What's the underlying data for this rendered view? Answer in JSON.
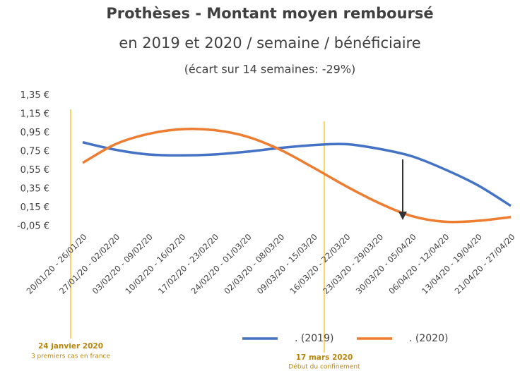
{
  "chart_data": {
    "type": "line",
    "title": "Prothèses - Montant moyen remboursé",
    "subtitle": "en 2019 et 2020 / semaine / bénéficiaire",
    "note": "(écart sur 14 semaines: -29%)",
    "categories": [
      "20/01/20 - 26/01/20",
      "27/01/20 - 02/02/20",
      "03/02/20 - 09/02/20",
      "10/02/20 - 16/02/20",
      "17/02/20 - 23/02/20",
      "24/02/20 - 01/03/20",
      "02/03/20 - 08/03/20",
      "09/03/20 - 15/03/20",
      "16/03/20 - 22/03/20",
      "23/03/20 - 29/03/20",
      "30/03/20 - 05/04/20",
      "06/04/20 - 12/04/20",
      "13/04/20 - 19/04/20",
      "21/04/20 - 27/04/20"
    ],
    "series": [
      {
        "name": ". (2019)",
        "color": "#4472c4",
        "values": [
          0.85,
          0.77,
          0.72,
          0.71,
          0.72,
          0.75,
          0.79,
          0.82,
          0.83,
          0.78,
          0.7,
          0.56,
          0.39,
          0.17
        ]
      },
      {
        "name": ". (2020)",
        "color": "#ed7d31",
        "values": [
          0.63,
          0.83,
          0.94,
          0.99,
          0.98,
          0.91,
          0.77,
          0.58,
          0.38,
          0.2,
          0.06,
          0.0,
          0.01,
          0.05
        ]
      }
    ],
    "ylim": [
      -0.05,
      1.35
    ],
    "yticks": [
      {
        "value": -0.05,
        "label": "-0,05 €"
      },
      {
        "value": 0.15,
        "label": "0,15 €"
      },
      {
        "value": 0.35,
        "label": "0,35 €"
      },
      {
        "value": 0.55,
        "label": "0,55 €"
      },
      {
        "value": 0.75,
        "label": "0,75 €"
      },
      {
        "value": 0.95,
        "label": "0,95 €"
      },
      {
        "value": 1.15,
        "label": "1,15 €"
      },
      {
        "value": 1.35,
        "label": "1,35 €"
      }
    ],
    "annotations": [
      {
        "title": "24 janvier 2020",
        "text": "3 premiers cas en france"
      },
      {
        "title": "17 mars 2020",
        "text": "Début du confinement"
      }
    ]
  }
}
